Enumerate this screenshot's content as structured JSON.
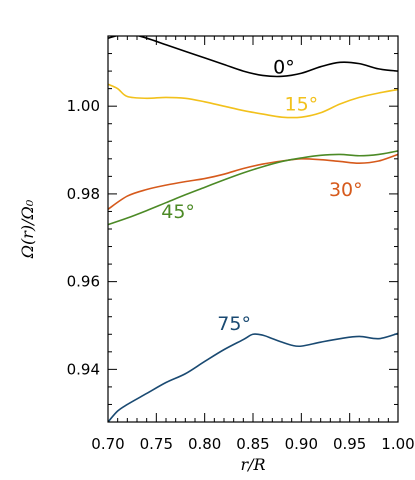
{
  "chart_data": {
    "type": "line",
    "xlabel": "r/R",
    "ylabel": "Ω(r)/Ω₀",
    "xlim": [
      0.7,
      1.0
    ],
    "ylim": [
      0.928,
      1.016
    ],
    "x_ticks": [
      "0.70",
      "0.75",
      "0.80",
      "0.85",
      "0.90",
      "0.95",
      "1.00"
    ],
    "y_ticks": [
      "0.94",
      "0.96",
      "0.98",
      "1.00"
    ],
    "grid": false,
    "legend": "inline labels",
    "series": [
      {
        "name": "0°",
        "color": "#000000",
        "x": [
          0.7,
          0.72,
          0.74,
          0.76,
          0.78,
          0.8,
          0.82,
          0.84,
          0.86,
          0.88,
          0.9,
          0.92,
          0.94,
          0.96,
          0.98,
          1.0
        ],
        "y": [
          1.0155,
          1.0165,
          1.0155,
          1.014,
          1.0125,
          1.011,
          1.0095,
          1.008,
          1.007,
          1.0068,
          1.0075,
          1.009,
          1.01,
          1.0097,
          1.0085,
          1.008
        ]
      },
      {
        "name": "15°",
        "color": "#f2c11c",
        "x": [
          0.7,
          0.71,
          0.72,
          0.74,
          0.76,
          0.78,
          0.8,
          0.82,
          0.84,
          0.86,
          0.88,
          0.9,
          0.92,
          0.94,
          0.96,
          0.98,
          1.0
        ],
        "y": [
          1.005,
          1.004,
          1.0022,
          1.0018,
          1.002,
          1.0018,
          1.001,
          1.0,
          0.999,
          0.9982,
          0.9975,
          0.9975,
          0.9985,
          1.0005,
          1.002,
          1.003,
          1.0038
        ]
      },
      {
        "name": "30°",
        "color": "#d65a1c",
        "x": [
          0.7,
          0.72,
          0.74,
          0.76,
          0.78,
          0.8,
          0.82,
          0.84,
          0.86,
          0.88,
          0.9,
          0.92,
          0.94,
          0.96,
          0.98,
          1.0
        ],
        "y": [
          0.9765,
          0.9795,
          0.981,
          0.982,
          0.9828,
          0.9835,
          0.9845,
          0.9858,
          0.9868,
          0.9875,
          0.988,
          0.9878,
          0.9874,
          0.987,
          0.9875,
          0.989
        ]
      },
      {
        "name": "45°",
        "color": "#4c8a26",
        "x": [
          0.7,
          0.72,
          0.74,
          0.76,
          0.78,
          0.8,
          0.82,
          0.84,
          0.86,
          0.88,
          0.9,
          0.92,
          0.94,
          0.96,
          0.98,
          1.0
        ],
        "y": [
          0.973,
          0.9745,
          0.9762,
          0.978,
          0.9798,
          0.9815,
          0.9832,
          0.9848,
          0.9862,
          0.9874,
          0.9882,
          0.9888,
          0.989,
          0.9887,
          0.989,
          0.9898
        ]
      },
      {
        "name": "75°",
        "color": "#1a4a72",
        "x": [
          0.7,
          0.71,
          0.72,
          0.74,
          0.76,
          0.78,
          0.8,
          0.82,
          0.84,
          0.85,
          0.86,
          0.87,
          0.88,
          0.89,
          0.9,
          0.92,
          0.94,
          0.96,
          0.98,
          1.0
        ],
        "y": [
          0.928,
          0.9305,
          0.932,
          0.9345,
          0.937,
          0.939,
          0.9418,
          0.9445,
          0.9468,
          0.948,
          0.9478,
          0.947,
          0.9462,
          0.9455,
          0.9453,
          0.9462,
          0.947,
          0.9475,
          0.947,
          0.9482
        ]
      }
    ],
    "annotations": [
      {
        "text": "0°",
        "series": 0,
        "x": 0.882,
        "y": 1.0075
      },
      {
        "text": "15°",
        "series": 1,
        "x": 0.9,
        "y": 0.999
      },
      {
        "text": "30°",
        "series": 2,
        "x": 0.946,
        "y": 0.9795
      },
      {
        "text": "45°",
        "series": 3,
        "x": 0.7725,
        "y": 0.9745
      },
      {
        "text": "75°",
        "series": 4,
        "x": 0.8305,
        "y": 0.949
      }
    ]
  }
}
